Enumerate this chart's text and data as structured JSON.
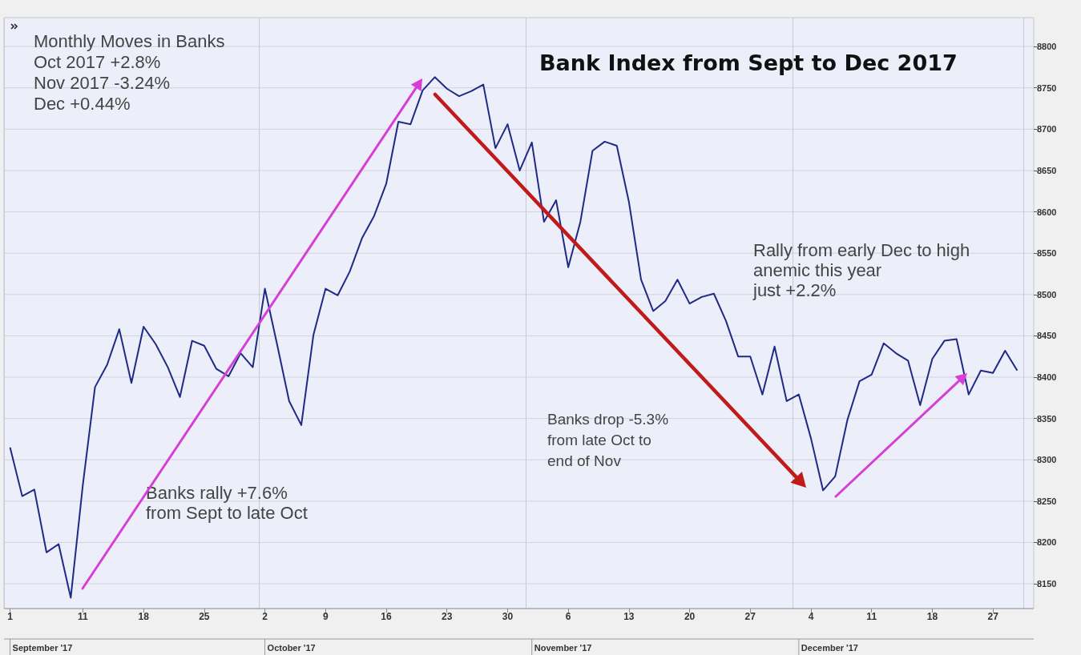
{
  "chart_data": {
    "type": "line",
    "title": "Bank Index from Sept to Dec 2017",
    "categories": [
      "1",
      null,
      null,
      null,
      null,
      null,
      "11",
      null,
      null,
      null,
      null,
      "18",
      null,
      null,
      null,
      null,
      "25",
      null,
      null,
      null,
      null,
      "2",
      null,
      null,
      null,
      null,
      "9",
      null,
      null,
      null,
      null,
      "16",
      null,
      null,
      null,
      null,
      "23",
      null,
      null,
      null,
      null,
      "30",
      null,
      null,
      null,
      null,
      "6",
      null,
      null,
      null,
      null,
      "13",
      null,
      null,
      null,
      null,
      "20",
      null,
      null,
      null,
      null,
      "27",
      null,
      null,
      null,
      null,
      "4",
      null,
      null,
      null,
      null,
      "11",
      null,
      null,
      null,
      null,
      "18",
      null,
      null,
      null,
      null,
      "27",
      null,
      null
    ],
    "values": [
      8315,
      8256,
      8264,
      8188,
      8198,
      8133,
      8270,
      8388,
      8415,
      8458,
      8393,
      8461,
      8440,
      8412,
      8376,
      8444,
      8438,
      8410,
      8401,
      8429,
      8412,
      8507,
      8440,
      8371,
      8342,
      8451,
      8507,
      8499,
      8528,
      8568,
      8595,
      8634,
      8709,
      8706,
      8747,
      8763,
      8749,
      8740,
      8746,
      8754,
      8677,
      8706,
      8650,
      8684,
      8588,
      8614,
      8533,
      8588,
      8674,
      8685,
      8680,
      8612,
      8518,
      8480,
      8492,
      8518,
      8489,
      8497,
      8501,
      8468,
      8425,
      8425,
      8379,
      8437,
      8371,
      8379,
      8326,
      8263,
      8280,
      8348,
      8395,
      8403,
      8441,
      8429,
      8420,
      8366,
      8422,
      8444,
      8446,
      8379,
      8408,
      8405,
      8432,
      8408
    ],
    "color": "#1f2a85",
    "ylim": [
      8120,
      8835
    ],
    "yticks": [
      8150,
      8200,
      8250,
      8300,
      8350,
      8400,
      8450,
      8500,
      8550,
      8600,
      8650,
      8700,
      8750,
      8800
    ],
    "grid": "y",
    "marker": "none",
    "annotations": [
      "Monthly Moves in Banks\nOct 2017 +2.8%\nNov 2017 -3.24%\nDec +0.44%",
      "Banks rally +7.6%\nfrom Sept to late Oct",
      "Banks drop -5.3%\nfrom late Oct to\nend of Nov",
      "Rally from early Dec to high\nanemic this year\njust +2.2%",
      "September '17",
      "October '17",
      "November '17",
      "December '17"
    ]
  }
}
